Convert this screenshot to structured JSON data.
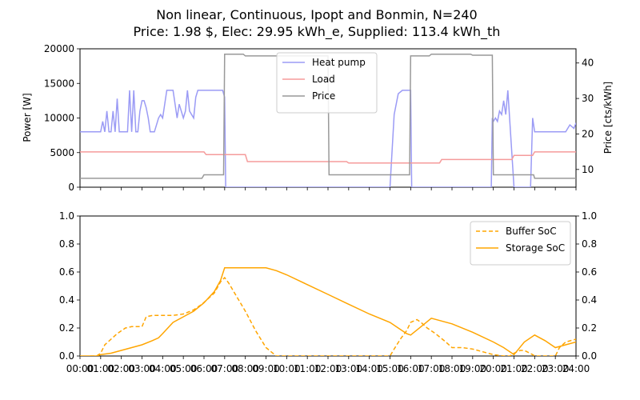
{
  "title_line1": "Non linear, Continuous, Ipopt and Bonmin, N=240",
  "title_line2": "Price: 1.98 $, Elec: 29.95 kWh_e, Supplied: 113.4 kWh_th",
  "x_tick_labels": [
    "00:00",
    "01:00",
    "02:00",
    "03:00",
    "04:00",
    "05:00",
    "06:00",
    "07:00",
    "08:00",
    "09:00",
    "10:00",
    "11:00",
    "12:00",
    "13:00",
    "14:00",
    "15:00",
    "16:00",
    "17:00",
    "18:00",
    "19:00",
    "20:00",
    "21:00",
    "22:00",
    "23:00",
    "24:00"
  ],
  "colors": {
    "heat_pump": "#9b9bf5",
    "load": "#f59b9b",
    "price": "#999999",
    "soc": "#ffa500"
  },
  "chart_data": [
    {
      "type": "line",
      "ylabel": "Power [W]",
      "ylim": [
        0,
        20000
      ],
      "yticks": [
        0,
        5000,
        10000,
        15000,
        20000
      ],
      "y2label": "Price [cts/kWh]",
      "y2lim": [
        5,
        44
      ],
      "y2ticks": [
        10,
        20,
        30,
        40
      ],
      "xlim": [
        0,
        24
      ],
      "legend": "top-center",
      "series": [
        {
          "name": "Heat pump",
          "axis": "left",
          "color": "#9b9bf5",
          "x": [
            0,
            1.0,
            1.1,
            1.2,
            1.3,
            1.4,
            1.5,
            1.6,
            1.7,
            1.8,
            1.9,
            2.0,
            2.1,
            2.2,
            2.3,
            2.4,
            2.5,
            2.6,
            2.7,
            2.8,
            2.9,
            3.0,
            3.1,
            3.2,
            3.3,
            3.4,
            3.5,
            3.6,
            3.8,
            3.9,
            4.0,
            4.2,
            4.5,
            4.7,
            4.8,
            5.0,
            5.1,
            5.2,
            5.3,
            5.4,
            5.5,
            5.6,
            5.7,
            5.8,
            6.0,
            6.1,
            6.5,
            6.9,
            7.0,
            7.05,
            9.0,
            15.0,
            15.2,
            15.4,
            15.6,
            16.0,
            16.05,
            19.9,
            19.95,
            20.0,
            20.1,
            20.2,
            20.3,
            20.4,
            20.5,
            20.6,
            20.7,
            21.0,
            21.1,
            21.5,
            21.8,
            21.9,
            22.0,
            22.1,
            22.5,
            22.9,
            23.0,
            23.2,
            23.5,
            23.7,
            23.9,
            24.0
          ],
          "values": [
            8000,
            8000,
            9500,
            8000,
            11000,
            8000,
            8000,
            11000,
            8000,
            12800,
            8000,
            8000,
            8000,
            8000,
            8000,
            14000,
            8000,
            14000,
            8000,
            8000,
            11000,
            12500,
            12500,
            11500,
            10000,
            8000,
            8000,
            8000,
            10000,
            10500,
            10000,
            14000,
            14000,
            10000,
            12000,
            10000,
            11000,
            14000,
            11000,
            10500,
            10000,
            13000,
            14000,
            14000,
            14000,
            14000,
            14000,
            14000,
            13000,
            0,
            0,
            0,
            10500,
            13500,
            14000,
            14000,
            0,
            0,
            10000,
            9500,
            10000,
            9500,
            11000,
            10500,
            12500,
            10500,
            14000,
            0,
            0,
            0,
            0,
            10000,
            8000,
            8000,
            8000,
            8000,
            8000,
            8000,
            8000,
            9000,
            8500,
            9300
          ]
        },
        {
          "name": "Load",
          "axis": "left",
          "color": "#f59b9b",
          "x": [
            0,
            6.0,
            6.1,
            8.0,
            8.1,
            12.9,
            13.0,
            17.4,
            17.5,
            20.9,
            21.0,
            21.9,
            22.0,
            24.0
          ],
          "values": [
            5100,
            5100,
            4700,
            4700,
            3700,
            3700,
            3500,
            3500,
            4000,
            4000,
            4600,
            4600,
            5100,
            5100
          ]
        },
        {
          "name": "Price",
          "axis": "right",
          "color": "#999999",
          "x": [
            0,
            5.9,
            6.0,
            6.95,
            7.0,
            7.9,
            8.0,
            12.0,
            12.05,
            12.9,
            13.0,
            15.95,
            16.0,
            16.9,
            17.0,
            18.9,
            19.0,
            19.95,
            20.0,
            21.95,
            22.0,
            24.0
          ],
          "values": [
            7.5,
            7.5,
            8.5,
            8.5,
            42.5,
            42.5,
            42.0,
            42.0,
            8.5,
            8.5,
            8.5,
            8.5,
            42.0,
            42.0,
            42.5,
            42.5,
            42.2,
            42.2,
            8.5,
            8.5,
            7.5,
            7.5
          ]
        }
      ]
    },
    {
      "type": "line",
      "ylim": [
        0,
        1.0
      ],
      "yticks": [
        0.0,
        0.2,
        0.4,
        0.6,
        0.8,
        1.0
      ],
      "y2ticks": [
        0.0,
        0.2,
        0.4,
        0.6,
        0.8,
        1.0
      ],
      "xlim": [
        0,
        24
      ],
      "legend": "top-right",
      "series": [
        {
          "name": "Buffer SoC",
          "style": "dashed",
          "color": "#ffa500",
          "x": [
            0.5,
            0.8,
            1.0,
            1.2,
            1.5,
            1.8,
            2.2,
            2.5,
            2.8,
            3.0,
            3.2,
            3.5,
            3.9,
            4.0,
            4.5,
            5.0,
            5.5,
            5.9,
            6.5,
            6.8,
            7.0,
            7.2,
            7.6,
            8.0,
            8.5,
            9.0,
            9.5,
            15.0,
            15.2,
            15.5,
            15.8,
            16.0,
            16.3,
            16.5,
            16.8,
            17.2,
            17.7,
            18.0,
            18.5,
            19.0,
            19.5,
            20.0,
            20.5,
            20.8,
            21.0,
            21.3,
            21.5,
            21.9,
            22.0,
            23.0,
            23.2,
            23.5,
            24.0
          ],
          "values": [
            0.0,
            0.0,
            0.02,
            0.08,
            0.12,
            0.16,
            0.2,
            0.21,
            0.21,
            0.21,
            0.28,
            0.29,
            0.29,
            0.29,
            0.29,
            0.3,
            0.33,
            0.37,
            0.45,
            0.53,
            0.56,
            0.52,
            0.42,
            0.32,
            0.18,
            0.06,
            0.0,
            0.0,
            0.05,
            0.12,
            0.18,
            0.24,
            0.26,
            0.24,
            0.2,
            0.16,
            0.1,
            0.06,
            0.06,
            0.05,
            0.03,
            0.01,
            0.0,
            0.0,
            0.02,
            0.04,
            0.04,
            0.01,
            0.0,
            0.0,
            0.06,
            0.1,
            0.12
          ]
        },
        {
          "name": "Storage SoC",
          "style": "solid",
          "color": "#ffa500",
          "x": [
            0,
            0.8,
            1.0,
            1.5,
            2.0,
            2.5,
            3.0,
            3.5,
            3.8,
            4.0,
            4.5,
            5.0,
            5.5,
            6.0,
            6.5,
            6.8,
            7.0,
            8.0,
            9.0,
            9.5,
            10.0,
            11.0,
            12.0,
            13.0,
            14.0,
            15.0,
            15.5,
            15.8,
            16.0,
            16.5,
            17.0,
            17.5,
            18.0,
            19.0,
            20.0,
            20.5,
            21.0,
            21.5,
            22.0,
            22.5,
            23.0,
            23.5,
            24.0
          ],
          "values": [
            0.0,
            0.0,
            0.01,
            0.02,
            0.04,
            0.06,
            0.08,
            0.11,
            0.13,
            0.16,
            0.24,
            0.28,
            0.32,
            0.38,
            0.46,
            0.54,
            0.63,
            0.63,
            0.63,
            0.61,
            0.58,
            0.51,
            0.44,
            0.37,
            0.3,
            0.24,
            0.19,
            0.16,
            0.15,
            0.21,
            0.27,
            0.25,
            0.23,
            0.17,
            0.1,
            0.06,
            0.01,
            0.1,
            0.15,
            0.11,
            0.06,
            0.08,
            0.1
          ]
        }
      ]
    }
  ]
}
